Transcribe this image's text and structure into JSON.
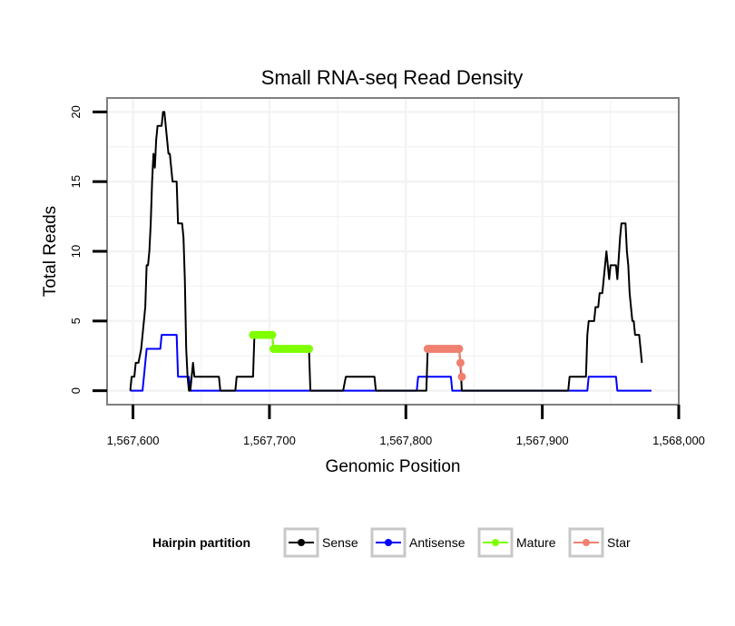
{
  "chart_data": {
    "type": "line",
    "title": "Small RNA-seq Read Density",
    "xlabel": "Genomic Position",
    "ylabel": "Total Reads",
    "xlim": [
      1567581,
      1568000
    ],
    "ylim": [
      -1,
      21
    ],
    "x_ticks": [
      1567600,
      1567700,
      1567800,
      1567900,
      1568000
    ],
    "x_tick_labels": [
      "1,567,600",
      "1,567,700",
      "1,567,800",
      "1,567,900",
      "1,568,000"
    ],
    "y_ticks": [
      0,
      5,
      10,
      15,
      20
    ],
    "y_tick_labels": [
      "0",
      "5",
      "10",
      "15",
      "20"
    ],
    "grid": true,
    "legend": {
      "title": "Hairpin partition",
      "position": "bottom",
      "entries": [
        "Sense",
        "Antisense",
        "Mature",
        "Star"
      ]
    },
    "series": [
      {
        "name": "Sense",
        "color": "#000000",
        "style": "line",
        "points": [
          [
            1567598,
            0
          ],
          [
            1567599,
            1
          ],
          [
            1567601,
            1
          ],
          [
            1567602,
            2
          ],
          [
            1567604,
            2
          ],
          [
            1567606,
            3
          ],
          [
            1567607,
            4
          ],
          [
            1567608,
            5
          ],
          [
            1567609,
            6
          ],
          [
            1567610,
            9
          ],
          [
            1567611,
            9
          ],
          [
            1567612,
            10
          ],
          [
            1567613,
            12
          ],
          [
            1567614,
            15
          ],
          [
            1567615,
            17
          ],
          [
            1567616,
            16
          ],
          [
            1567617,
            18
          ],
          [
            1567618,
            19
          ],
          [
            1567621,
            19
          ],
          [
            1567622,
            20
          ],
          [
            1567623,
            20
          ],
          [
            1567624,
            19
          ],
          [
            1567625,
            18
          ],
          [
            1567626,
            17
          ],
          [
            1567627,
            17
          ],
          [
            1567628,
            16
          ],
          [
            1567629,
            15
          ],
          [
            1567632,
            15
          ],
          [
            1567633,
            12
          ],
          [
            1567636,
            12
          ],
          [
            1567637,
            11
          ],
          [
            1567638,
            8
          ],
          [
            1567639,
            3
          ],
          [
            1567640,
            1
          ],
          [
            1567641,
            0
          ],
          [
            1567642,
            0
          ],
          [
            1567643,
            1
          ],
          [
            1567644,
            2
          ],
          [
            1567645,
            1
          ],
          [
            1567663,
            1
          ],
          [
            1567664,
            0
          ],
          [
            1567675,
            0
          ],
          [
            1567676,
            1
          ],
          [
            1567688,
            1
          ],
          [
            1567689,
            4
          ],
          [
            1567702,
            4
          ],
          [
            1567703,
            3
          ],
          [
            1567729,
            3
          ],
          [
            1567730,
            0
          ],
          [
            1567754,
            0
          ],
          [
            1567756,
            1
          ],
          [
            1567777,
            1
          ],
          [
            1567778,
            0
          ],
          [
            1567815,
            0
          ],
          [
            1567816,
            3
          ],
          [
            1567839,
            3
          ],
          [
            1567840,
            2
          ],
          [
            1567840.5,
            1
          ],
          [
            1567841,
            0
          ],
          [
            1567919,
            0
          ],
          [
            1567920,
            1
          ],
          [
            1567932,
            1
          ],
          [
            1567933,
            4
          ],
          [
            1567934,
            5
          ],
          [
            1567938,
            5
          ],
          [
            1567939,
            6
          ],
          [
            1567941,
            6
          ],
          [
            1567942,
            7
          ],
          [
            1567944,
            7
          ],
          [
            1567945,
            8
          ],
          [
            1567946,
            9
          ],
          [
            1567947,
            10
          ],
          [
            1567948,
            9
          ],
          [
            1567949,
            8
          ],
          [
            1567950,
            9
          ],
          [
            1567954,
            9
          ],
          [
            1567955,
            8
          ],
          [
            1567957,
            11
          ],
          [
            1567958,
            12
          ],
          [
            1567961,
            12
          ],
          [
            1567962,
            10
          ],
          [
            1567963,
            9
          ],
          [
            1567964,
            7
          ],
          [
            1567965,
            6
          ],
          [
            1567966,
            5
          ],
          [
            1567967,
            5
          ],
          [
            1567968,
            4
          ],
          [
            1567971,
            4
          ],
          [
            1567972,
            3
          ],
          [
            1567973,
            2
          ]
        ]
      },
      {
        "name": "Antisense",
        "color": "#0000ff",
        "style": "line",
        "points": [
          [
            1567598,
            0
          ],
          [
            1567607,
            0
          ],
          [
            1567608,
            1
          ],
          [
            1567609,
            2
          ],
          [
            1567610,
            3
          ],
          [
            1567620,
            3
          ],
          [
            1567621,
            4
          ],
          [
            1567632,
            4
          ],
          [
            1567633,
            1
          ],
          [
            1567641,
            1
          ],
          [
            1567642,
            0
          ],
          [
            1567808,
            0
          ],
          [
            1567809,
            1
          ],
          [
            1567833,
            1
          ],
          [
            1567834,
            0
          ],
          [
            1567933,
            0
          ],
          [
            1567934,
            1
          ],
          [
            1567954,
            1
          ],
          [
            1567955,
            0
          ],
          [
            1567980,
            0
          ]
        ]
      },
      {
        "name": "Mature",
        "color": "#7fff00",
        "style": "dots",
        "points": [
          [
            1567688,
            4
          ],
          [
            1567690,
            4
          ],
          [
            1567692,
            4
          ],
          [
            1567694,
            4
          ],
          [
            1567696,
            4
          ],
          [
            1567698,
            4
          ],
          [
            1567700,
            4
          ],
          [
            1567702,
            4
          ],
          [
            1567703,
            3
          ],
          [
            1567705,
            3
          ],
          [
            1567707,
            3
          ],
          [
            1567709,
            3
          ],
          [
            1567711,
            3
          ],
          [
            1567713,
            3
          ],
          [
            1567715,
            3
          ],
          [
            1567717,
            3
          ],
          [
            1567719,
            3
          ],
          [
            1567721,
            3
          ],
          [
            1567723,
            3
          ],
          [
            1567725,
            3
          ],
          [
            1567727,
            3
          ],
          [
            1567729,
            3
          ]
        ]
      },
      {
        "name": "Star",
        "color": "#f08070",
        "style": "dots",
        "points": [
          [
            1567816,
            3
          ],
          [
            1567818,
            3
          ],
          [
            1567820,
            3
          ],
          [
            1567822,
            3
          ],
          [
            1567824,
            3
          ],
          [
            1567826,
            3
          ],
          [
            1567828,
            3
          ],
          [
            1567830,
            3
          ],
          [
            1567832,
            3
          ],
          [
            1567834,
            3
          ],
          [
            1567836,
            3
          ],
          [
            1567838,
            3
          ],
          [
            1567839,
            3
          ],
          [
            1567840,
            2
          ],
          [
            1567841,
            1
          ]
        ]
      }
    ]
  }
}
